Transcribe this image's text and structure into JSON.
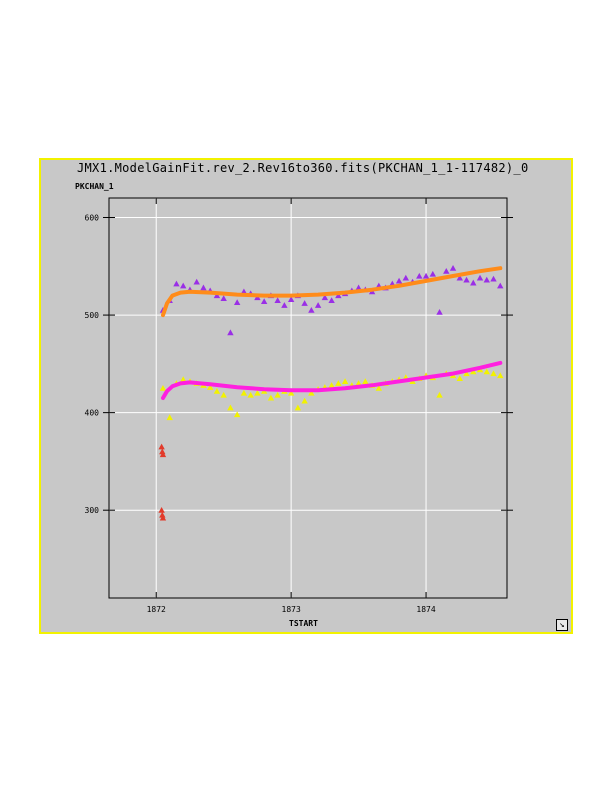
{
  "window": {
    "title": "JMX1.ModelGainFit.rev_2.Rev16to360.fits(PKCHAN_1_1-117482)_0"
  },
  "chart_data": {
    "type": "scatter",
    "title": "JMX1.ModelGainFit.rev_2.Rev16to360.fits(PKCHAN_1_1-117482)_0",
    "xlabel": "TSTART",
    "ylabel": "PKCHAN_1",
    "xlim": [
      1871.65,
      1874.6
    ],
    "ylim": [
      210,
      620
    ],
    "x_ticks": [
      1872,
      1873,
      1874
    ],
    "x_tick_labels": [
      "1872",
      "1873",
      "1874"
    ],
    "y_ticks": [
      300,
      400,
      500,
      600
    ],
    "y_tick_labels": [
      "300",
      "400",
      "500",
      "600"
    ],
    "grid": true,
    "background": "#c8c8c8",
    "series": [
      {
        "kind": "points",
        "marker": "triangle",
        "color": "#9a2fe6",
        "x": [
          1872.05,
          1872.1,
          1872.15,
          1872.2,
          1872.25,
          1872.3,
          1872.35,
          1872.4,
          1872.45,
          1872.5,
          1872.55,
          1872.6,
          1872.65,
          1872.7,
          1872.75,
          1872.8,
          1872.85,
          1872.9,
          1872.95,
          1873.0,
          1873.05,
          1873.1,
          1873.15,
          1873.2,
          1873.25,
          1873.3,
          1873.35,
          1873.4,
          1873.45,
          1873.5,
          1873.55,
          1873.6,
          1873.65,
          1873.7,
          1873.75,
          1873.8,
          1873.85,
          1873.9,
          1873.95,
          1874.0,
          1874.05,
          1874.1,
          1874.15,
          1874.2,
          1874.25,
          1874.3,
          1874.35,
          1874.4,
          1874.45,
          1874.5,
          1874.55
        ],
        "y": [
          505,
          515,
          532,
          530,
          526,
          534,
          528,
          525,
          520,
          517,
          482,
          513,
          524,
          522,
          518,
          514,
          520,
          515,
          510,
          516,
          520,
          512,
          505,
          510,
          518,
          515,
          520,
          522,
          525,
          528,
          526,
          524,
          530,
          528,
          532,
          535,
          538,
          534,
          540,
          540,
          542,
          503,
          545,
          548,
          538,
          536,
          533,
          538,
          536,
          537,
          530
        ]
      },
      {
        "kind": "points",
        "marker": "triangle",
        "color": "#f2f200",
        "x": [
          1872.05,
          1872.1,
          1872.15,
          1872.2,
          1872.25,
          1872.3,
          1872.35,
          1872.4,
          1872.45,
          1872.5,
          1872.55,
          1872.6,
          1872.65,
          1872.7,
          1872.75,
          1872.8,
          1872.85,
          1872.9,
          1872.95,
          1873.0,
          1873.05,
          1873.1,
          1873.15,
          1873.2,
          1873.25,
          1873.3,
          1873.35,
          1873.4,
          1873.45,
          1873.5,
          1873.55,
          1873.6,
          1873.65,
          1873.7,
          1873.75,
          1873.8,
          1873.85,
          1873.9,
          1873.95,
          1874.0,
          1874.05,
          1874.1,
          1874.15,
          1874.2,
          1874.25,
          1874.3,
          1874.35,
          1874.4,
          1874.45,
          1874.5,
          1874.55
        ],
        "y": [
          425,
          395,
          430,
          434,
          432,
          430,
          428,
          426,
          422,
          418,
          405,
          398,
          420,
          418,
          420,
          422,
          415,
          418,
          422,
          420,
          405,
          412,
          420,
          424,
          426,
          428,
          430,
          432,
          428,
          430,
          432,
          428,
          425,
          430,
          432,
          434,
          436,
          432,
          435,
          438,
          436,
          418,
          440,
          438,
          435,
          440,
          442,
          444,
          442,
          440,
          438
        ]
      },
      {
        "kind": "points",
        "marker": "triangle",
        "color": "#e23a2a",
        "x": [
          1872.04,
          1872.045,
          1872.05,
          1872.04,
          1872.045,
          1872.05
        ],
        "y": [
          365,
          360,
          357,
          300,
          295,
          292
        ]
      },
      {
        "kind": "line",
        "color": "#ff8c1a",
        "x": [
          1872.05,
          1872.08,
          1872.12,
          1872.18,
          1872.25,
          1872.4,
          1872.6,
          1872.8,
          1873.0,
          1873.2,
          1873.4,
          1873.6,
          1873.8,
          1874.0,
          1874.2,
          1874.4,
          1874.55
        ],
        "y": [
          500,
          512,
          520,
          523,
          524,
          523,
          521,
          520,
          520,
          521,
          523,
          526,
          530,
          535,
          540,
          545,
          548
        ]
      },
      {
        "kind": "line",
        "color": "#ff20e0",
        "x": [
          1872.05,
          1872.08,
          1872.12,
          1872.18,
          1872.25,
          1872.4,
          1872.6,
          1872.8,
          1873.0,
          1873.2,
          1873.4,
          1873.6,
          1873.8,
          1874.0,
          1874.2,
          1874.4,
          1874.55
        ],
        "y": [
          415,
          422,
          427,
          430,
          431,
          429,
          426,
          424,
          423,
          423,
          425,
          428,
          432,
          436,
          440,
          446,
          451
        ]
      }
    ]
  }
}
